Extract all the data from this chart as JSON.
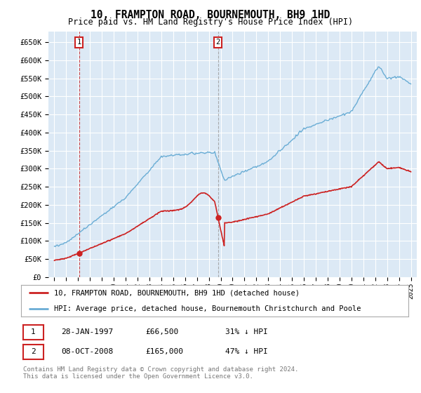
{
  "title": "10, FRAMPTON ROAD, BOURNEMOUTH, BH9 1HD",
  "subtitle": "Price paid vs. HM Land Registry's House Price Index (HPI)",
  "ylabel_ticks": [
    "£0",
    "£50K",
    "£100K",
    "£150K",
    "£200K",
    "£250K",
    "£300K",
    "£350K",
    "£400K",
    "£450K",
    "£500K",
    "£550K",
    "£600K",
    "£650K"
  ],
  "ytick_values": [
    0,
    50000,
    100000,
    150000,
    200000,
    250000,
    300000,
    350000,
    400000,
    450000,
    500000,
    550000,
    600000,
    650000
  ],
  "ylim": [
    0,
    680000
  ],
  "xlim_start": 1994.5,
  "xlim_end": 2025.5,
  "bg_color": "#dce9f5",
  "grid_color": "#ffffff",
  "hpi_color": "#6aadd5",
  "price_color": "#cc2222",
  "legend_label_price": "10, FRAMPTON ROAD, BOURNEMOUTH, BH9 1HD (detached house)",
  "legend_label_hpi": "HPI: Average price, detached house, Bournemouth Christchurch and Poole",
  "transaction1_date": "28-JAN-1997",
  "transaction1_price": "£66,500",
  "transaction1_hpi": "31% ↓ HPI",
  "transaction1_x": 1997.07,
  "transaction1_y": 66500,
  "transaction2_date": "08-OCT-2008",
  "transaction2_price": "£165,000",
  "transaction2_hpi": "47% ↓ HPI",
  "transaction2_x": 2008.77,
  "transaction2_y": 165000,
  "footnote1": "Contains HM Land Registry data © Crown copyright and database right 2024.",
  "footnote2": "This data is licensed under the Open Government Licence v3.0.",
  "xticks": [
    1995,
    1996,
    1997,
    1998,
    1999,
    2000,
    2001,
    2002,
    2003,
    2004,
    2005,
    2006,
    2007,
    2008,
    2009,
    2010,
    2011,
    2012,
    2013,
    2014,
    2015,
    2016,
    2017,
    2018,
    2019,
    2020,
    2021,
    2022,
    2023,
    2024,
    2025
  ]
}
